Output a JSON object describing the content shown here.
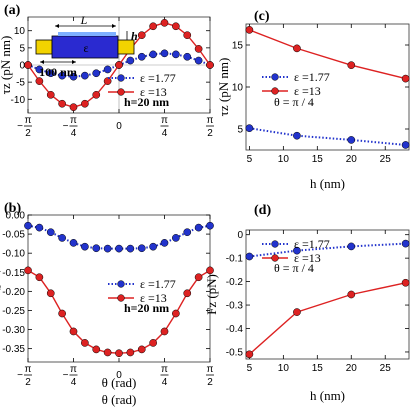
{
  "colors": {
    "blue": "#2233cc",
    "red": "#dd2222",
    "inset_yellow": "#f2d300",
    "inset_blue": "#2a2ad0"
  },
  "chart_data": [
    {
      "panel": "(a)",
      "type": "line",
      "xlabel": "θ (rad)",
      "ylabel": "τz (pN nm)",
      "xlim": [
        -1.5708,
        1.5708
      ],
      "ylim": [
        -14,
        14
      ],
      "xticks": [
        -1.5708,
        -0.7854,
        0,
        0.7854,
        1.5708
      ],
      "xtick_labels": [
        "-π/2",
        "-π/4",
        "0",
        "π/4",
        "π/2"
      ],
      "yticks": [
        -10,
        -5,
        0,
        5,
        10
      ],
      "ytick_labels": [
        "-10",
        "-5",
        "0",
        "5",
        "10"
      ],
      "grid": false,
      "legend_position": "bottom-right",
      "annotation": "h=20 nm",
      "inset": {
        "L_label": "L",
        "h_label": "h",
        "eps_label": "ε",
        "scale_label": "100 nm"
      },
      "series": [
        {
          "name": "ε =1.77",
          "style": "dotted",
          "color": "#2233cc",
          "x": [
            -1.5708,
            -1.3744,
            -1.1781,
            -0.9817,
            -0.7854,
            -0.589,
            -0.3927,
            -0.1963,
            0,
            0.1963,
            0.3927,
            0.589,
            0.7854,
            0.9817,
            1.1781,
            1.3744,
            1.5708
          ],
          "y": [
            0,
            -1.3,
            -2.4,
            -3.1,
            -3.4,
            -3.1,
            -2.4,
            -1.3,
            0,
            1.3,
            2.4,
            3.1,
            3.4,
            3.1,
            2.4,
            1.3,
            0
          ]
        },
        {
          "name": "ε =13",
          "style": "solid",
          "color": "#dd2222",
          "x": [
            -1.5708,
            -1.3744,
            -1.1781,
            -0.9817,
            -0.7854,
            -0.589,
            -0.3927,
            -0.1963,
            0,
            0.1963,
            0.3927,
            0.589,
            0.7854,
            0.9817,
            1.1781,
            1.3744,
            1.5708
          ],
          "y": [
            0,
            -4.7,
            -8.7,
            -11.3,
            -12.3,
            -11.3,
            -8.7,
            -4.7,
            0,
            4.7,
            8.7,
            11.3,
            12.3,
            11.3,
            8.7,
            4.7,
            0
          ]
        }
      ]
    },
    {
      "panel": "(b)",
      "type": "line",
      "xlabel": "θ (rad)",
      "ylabel": "Fz (pN)",
      "xlim": [
        -1.5708,
        1.5708
      ],
      "ylim": [
        -0.385,
        0
      ],
      "xticks": [
        -1.5708,
        -0.7854,
        0,
        0.7854,
        1.5708
      ],
      "xtick_labels": [
        "-π/2",
        "-π/4",
        "0",
        "π/4",
        "π/2"
      ],
      "yticks": [
        0,
        -0.05,
        -0.1,
        -0.15,
        -0.2,
        -0.25,
        -0.3,
        -0.35
      ],
      "ytick_labels": [
        "0.00",
        "-0.05",
        "-0.10",
        "-0.15",
        "-0.20",
        "-0.25",
        "-0.30",
        "-0.35"
      ],
      "grid": false,
      "legend_position": "center-right",
      "annotation": "h=20 nm",
      "series": [
        {
          "name": "ε =1.77",
          "style": "dotted",
          "color": "#2233cc",
          "x": [
            -1.5708,
            -1.3744,
            -1.1781,
            -0.9817,
            -0.7854,
            -0.589,
            -0.3927,
            -0.1963,
            0,
            0.1963,
            0.3927,
            0.589,
            0.7854,
            0.9817,
            1.1781,
            1.3744,
            1.5708
          ],
          "y": [
            -0.028,
            -0.033,
            -0.045,
            -0.06,
            -0.073,
            -0.083,
            -0.087,
            -0.088,
            -0.088,
            -0.088,
            -0.087,
            -0.083,
            -0.073,
            -0.06,
            -0.045,
            -0.033,
            -0.028
          ]
        },
        {
          "name": "ε =13",
          "style": "solid",
          "color": "#dd2222",
          "x": [
            -1.5708,
            -1.3744,
            -1.1781,
            -0.9817,
            -0.7854,
            -0.589,
            -0.3927,
            -0.1963,
            0,
            0.1963,
            0.3927,
            0.589,
            0.7854,
            0.9817,
            1.1781,
            1.3744,
            1.5708
          ],
          "y": [
            -0.145,
            -0.163,
            -0.205,
            -0.258,
            -0.305,
            -0.335,
            -0.352,
            -0.36,
            -0.362,
            -0.36,
            -0.352,
            -0.335,
            -0.305,
            -0.258,
            -0.205,
            -0.163,
            -0.145
          ]
        }
      ]
    },
    {
      "panel": "(c)",
      "type": "line",
      "xlabel": "h (nm)",
      "ylabel": "τz (pN nm)",
      "xlim": [
        4.5,
        28.5
      ],
      "ylim": [
        2.5,
        17.5
      ],
      "xticks": [
        5,
        10,
        15,
        20,
        25
      ],
      "xtick_labels": [
        "5",
        "10",
        "15",
        "20",
        "25"
      ],
      "yticks": [
        5,
        10,
        15
      ],
      "ytick_labels": [
        "5",
        "10",
        "15"
      ],
      "grid": false,
      "legend_position": "center-left",
      "annotation": "θ = π / 4",
      "series": [
        {
          "name": "ε =1.77",
          "style": "dotted",
          "color": "#2233cc",
          "x": [
            5,
            12,
            20,
            28
          ],
          "y": [
            5.1,
            4.2,
            3.7,
            3.1
          ]
        },
        {
          "name": "ε =13",
          "style": "solid",
          "color": "#dd2222",
          "x": [
            5,
            12,
            20,
            28
          ],
          "y": [
            16.8,
            14.6,
            12.6,
            11.0
          ]
        }
      ]
    },
    {
      "panel": "(d)",
      "type": "line",
      "xlabel": "h (nm)",
      "ylabel": "Fz (pN)",
      "xlim": [
        4.5,
        28.5
      ],
      "ylim": [
        -0.53,
        0.02
      ],
      "xticks": [
        5,
        10,
        15,
        20,
        25
      ],
      "xtick_labels": [
        "5",
        "10",
        "15",
        "20",
        "25"
      ],
      "yticks": [
        0,
        -0.1,
        -0.2,
        -0.3,
        -0.4,
        -0.5
      ],
      "ytick_labels": [
        "0",
        "-0.1",
        "-0.2",
        "-0.3",
        "-0.4",
        "-0.5"
      ],
      "grid": false,
      "legend_position": "top-right",
      "annotation": "θ = π / 4",
      "series": [
        {
          "name": "ε =1.77",
          "style": "dotted",
          "color": "#2233cc",
          "x": [
            5,
            12,
            20,
            28
          ],
          "y": [
            -0.093,
            -0.068,
            -0.05,
            -0.038
          ]
        },
        {
          "name": "ε =13",
          "style": "solid",
          "color": "#dd2222",
          "x": [
            5,
            12,
            20,
            28
          ],
          "y": [
            -0.51,
            -0.33,
            -0.255,
            -0.205
          ]
        }
      ]
    }
  ]
}
